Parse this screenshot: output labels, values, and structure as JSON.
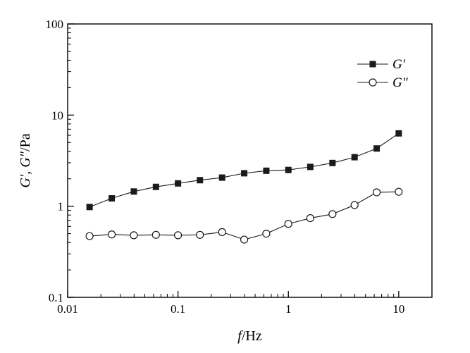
{
  "chart_data": {
    "type": "line",
    "xscale": "log",
    "yscale": "log",
    "xlim": [
      0.01,
      20
    ],
    "ylim": [
      0.1,
      100
    ],
    "xlabel": "f/Hz",
    "ylabel": "G′, G″/Pa",
    "x_ticks": [
      "0.01",
      "0.1",
      "1",
      "10"
    ],
    "y_ticks": [
      "0.1",
      "1",
      "10",
      "100"
    ],
    "grid": false,
    "legend_position": "top-right",
    "x": [
      0.0158,
      0.0251,
      0.0398,
      0.0631,
      0.1,
      0.158,
      0.251,
      0.398,
      0.631,
      1.0,
      1.58,
      2.51,
      3.98,
      6.31,
      10.0
    ],
    "series": [
      {
        "name": "G′",
        "marker": "filled-square",
        "color": "#1a1a1a",
        "values": [
          0.98,
          1.22,
          1.45,
          1.63,
          1.78,
          1.93,
          2.06,
          2.3,
          2.45,
          2.5,
          2.7,
          2.98,
          3.45,
          4.3,
          6.3
        ]
      },
      {
        "name": "G″",
        "marker": "open-circle",
        "color": "#1a1a1a",
        "values": [
          0.47,
          0.49,
          0.48,
          0.485,
          0.48,
          0.485,
          0.52,
          0.43,
          0.5,
          0.64,
          0.74,
          0.82,
          1.03,
          1.42,
          1.44
        ]
      }
    ]
  }
}
